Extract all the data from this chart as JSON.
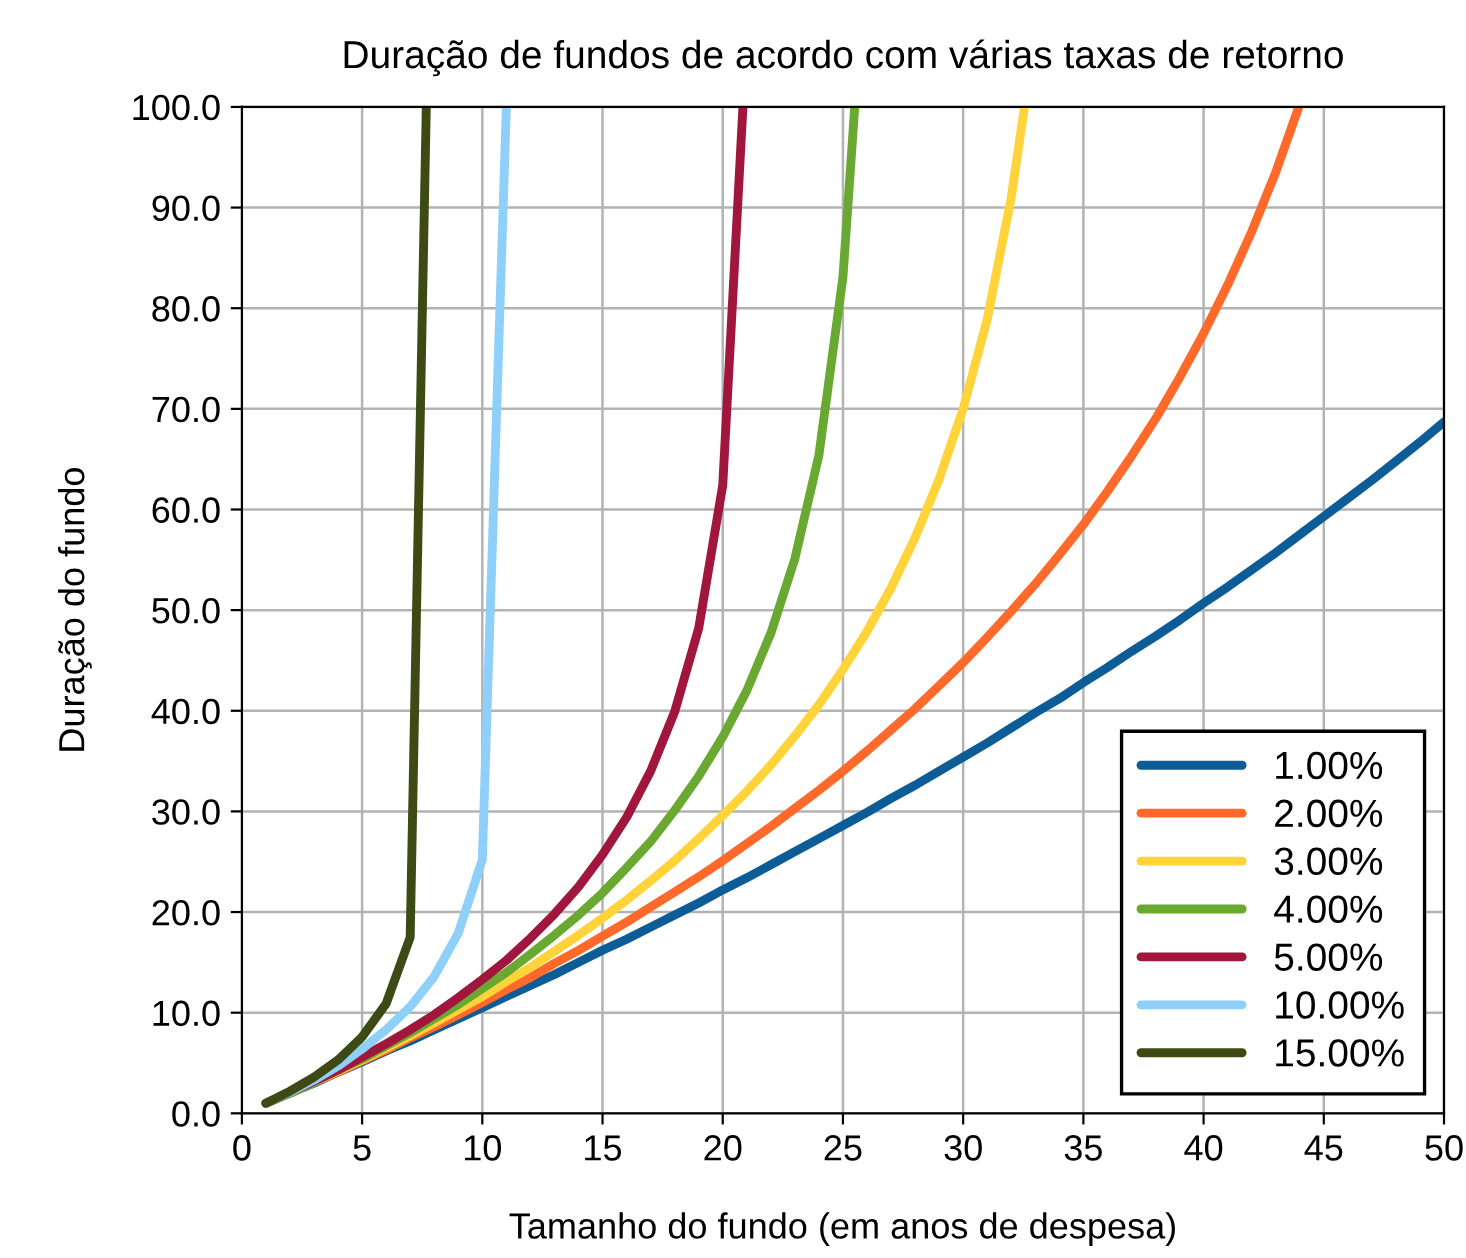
{
  "chart_data": {
    "type": "line",
    "title": "Duração de fundos de acordo com várias taxas de retorno",
    "xlabel": "Tamanho do fundo (em anos de despesa)",
    "ylabel": "Duração do fundo",
    "xlim": [
      0,
      50
    ],
    "xticks": [
      0,
      5,
      10,
      15,
      20,
      25,
      30,
      35,
      40,
      45,
      50
    ],
    "ylim": [
      0,
      100
    ],
    "yticks": [
      {
        "value": 0,
        "label": "0.0"
      },
      {
        "value": 10,
        "label": "10.0"
      },
      {
        "value": 20,
        "label": "20.0"
      },
      {
        "value": 30,
        "label": "30.0"
      },
      {
        "value": 40,
        "label": "40.0"
      },
      {
        "value": 50,
        "label": "50.0"
      },
      {
        "value": 60,
        "label": "60.0"
      },
      {
        "value": 70,
        "label": "70.0"
      },
      {
        "value": 80,
        "label": "80.0"
      },
      {
        "value": 90,
        "label": "90.0"
      },
      {
        "value": 100,
        "label": "100.0"
      }
    ],
    "grid": true,
    "legend": "bottom right",
    "marker": "none",
    "line_style": "solid",
    "series": [
      {
        "name": "1.00%",
        "color": "#0c5d97",
        "x": [
          1,
          2,
          3,
          4,
          5,
          6,
          7,
          8,
          9,
          10,
          11,
          12,
          13,
          14,
          15,
          16,
          17,
          18,
          19,
          20,
          21,
          22,
          23,
          24,
          25,
          26,
          27,
          28,
          29,
          30,
          31,
          32,
          33,
          34,
          35,
          36,
          37,
          38,
          39,
          40,
          41,
          42,
          43,
          44,
          45,
          46,
          47,
          48,
          49,
          50
        ],
        "values": [
          1.0,
          2.0,
          3.0,
          4.1,
          5.1,
          6.2,
          7.2,
          8.3,
          9.4,
          10.5,
          11.6,
          12.7,
          13.8,
          15.0,
          16.2,
          17.3,
          18.5,
          19.7,
          20.9,
          22.2,
          23.4,
          24.7,
          26.0,
          27.3,
          28.6,
          29.9,
          31.3,
          32.6,
          34.0,
          35.4,
          36.8,
          38.3,
          39.8,
          41.2,
          42.8,
          44.3,
          45.9,
          47.4,
          49.0,
          50.7,
          52.3,
          54.0,
          55.7,
          57.5,
          59.3,
          61.1,
          62.9,
          64.8,
          66.7,
          68.7
        ]
      },
      {
        "name": "2.00%",
        "color": "#ff6a2b",
        "x": [
          1,
          2,
          3,
          4,
          5,
          6,
          7,
          8,
          9,
          10,
          11,
          12,
          13,
          14,
          15,
          16,
          17,
          18,
          19,
          20,
          21,
          22,
          23,
          24,
          25,
          26,
          27,
          28,
          29,
          30,
          31,
          32,
          33,
          34,
          35,
          36,
          37,
          38,
          39,
          40,
          41,
          42,
          43,
          43.96
        ],
        "values": [
          1.0,
          2.0,
          3.1,
          4.1,
          5.2,
          6.3,
          7.5,
          8.6,
          9.8,
          11.0,
          12.3,
          13.5,
          14.9,
          16.2,
          17.6,
          19.0,
          20.5,
          22.0,
          23.5,
          25.1,
          26.8,
          28.5,
          30.3,
          32.1,
          34.0,
          36.0,
          38.1,
          40.2,
          42.5,
          44.8,
          47.3,
          49.9,
          52.6,
          55.5,
          58.5,
          61.8,
          65.3,
          69.0,
          73.1,
          77.5,
          82.3,
          87.6,
          93.5,
          100
        ]
      },
      {
        "name": "3.00%",
        "color": "#ffd43a",
        "x": [
          1,
          2,
          3,
          4,
          5,
          6,
          7,
          8,
          9,
          10,
          11,
          12,
          13,
          14,
          15,
          16,
          17,
          18,
          19,
          20,
          21,
          22,
          23,
          24,
          25,
          26,
          27,
          28,
          29,
          30,
          31,
          32,
          32.55
        ],
        "values": [
          1.0,
          2.0,
          3.1,
          4.2,
          5.3,
          6.5,
          7.7,
          9.0,
          10.3,
          11.6,
          13.1,
          14.5,
          16.1,
          17.7,
          19.4,
          21.2,
          23.1,
          25.1,
          27.3,
          29.6,
          32.0,
          34.6,
          37.5,
          40.6,
          44.1,
          47.9,
          52.2,
          57.2,
          63.0,
          70.0,
          78.9,
          91.0,
          100
        ]
      },
      {
        "name": "4.00%",
        "color": "#6aa931",
        "x": [
          1,
          2,
          3,
          4,
          5,
          6,
          7,
          8,
          9,
          10,
          11,
          12,
          13,
          14,
          15,
          16,
          17,
          18,
          19,
          20,
          21,
          22,
          23,
          24,
          25,
          25.49
        ],
        "values": [
          1.0,
          2.0,
          3.1,
          4.3,
          5.4,
          6.7,
          8.0,
          9.4,
          10.8,
          12.4,
          14.0,
          15.8,
          17.7,
          19.7,
          21.9,
          24.4,
          27.0,
          30.1,
          33.5,
          37.4,
          42.0,
          47.7,
          55.1,
          65.4,
          83.1,
          100
        ]
      },
      {
        "name": "5.00%",
        "color": "#a0163c",
        "x": [
          1,
          2,
          3,
          4,
          5,
          6,
          7,
          8,
          9,
          10,
          11,
          12,
          13,
          14,
          15,
          16,
          17,
          18,
          19,
          20,
          20.84
        ],
        "values": [
          1.0,
          2.1,
          3.2,
          4.3,
          5.6,
          6.9,
          8.3,
          9.8,
          11.5,
          13.3,
          15.2,
          17.4,
          19.8,
          22.5,
          25.7,
          29.4,
          34.0,
          39.9,
          48.2,
          62.4,
          100
        ]
      },
      {
        "name": "10.00%",
        "color": "#8ed0f9",
        "x": [
          1,
          2,
          3,
          4,
          5,
          6,
          7,
          8,
          9,
          10,
          11.0
        ],
        "values": [
          1.0,
          2.1,
          3.3,
          4.7,
          6.4,
          8.3,
          10.6,
          13.6,
          17.9,
          25.2,
          100
        ]
      },
      {
        "name": "15.00%",
        "color": "#3e4a14",
        "x": [
          1,
          2,
          3,
          4,
          5,
          6,
          7,
          7.67
        ],
        "values": [
          1.0,
          2.2,
          3.6,
          5.3,
          7.6,
          10.9,
          17.5,
          100
        ]
      }
    ]
  }
}
